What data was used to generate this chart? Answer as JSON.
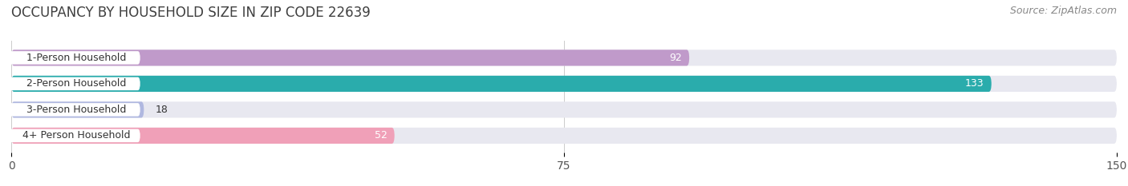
{
  "title": "OCCUPANCY BY HOUSEHOLD SIZE IN ZIP CODE 22639",
  "source": "Source: ZipAtlas.com",
  "categories": [
    "1-Person Household",
    "2-Person Household",
    "3-Person Household",
    "4+ Person Household"
  ],
  "values": [
    92,
    133,
    18,
    52
  ],
  "bar_colors": [
    "#c09aca",
    "#2aacac",
    "#b0b8e0",
    "#f0a0b8"
  ],
  "bar_bg_color": "#e8e8f0",
  "xlim": [
    0,
    150
  ],
  "xticks": [
    0,
    75,
    150
  ],
  "label_colors_inside": [
    "#ffffff",
    "#ffffff",
    "#555555",
    "#555555"
  ],
  "title_fontsize": 12,
  "source_fontsize": 9,
  "tick_fontsize": 10,
  "bar_label_fontsize": 9,
  "category_fontsize": 9,
  "bar_height": 0.62,
  "background_color": "#ffffff"
}
